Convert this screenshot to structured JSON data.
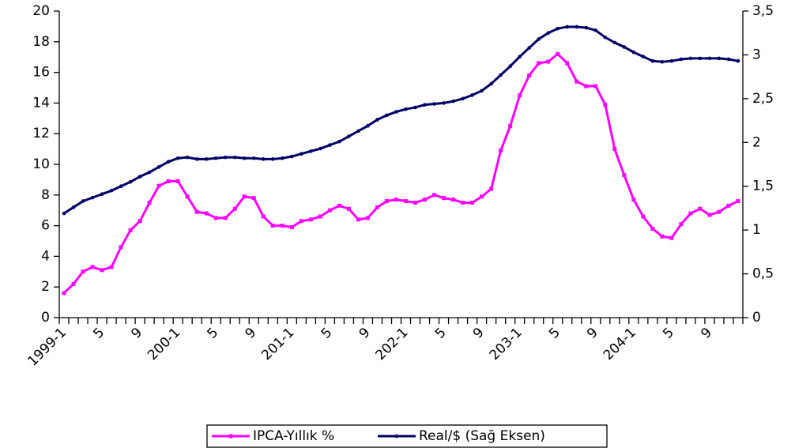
{
  "chart_data": {
    "type": "line",
    "categories": [
      "1999-1",
      null,
      null,
      null,
      "5",
      null,
      null,
      null,
      "9",
      null,
      null,
      null,
      "200-1",
      null,
      null,
      null,
      "5",
      null,
      null,
      null,
      "9",
      null,
      null,
      null,
      "201-1",
      null,
      null,
      null,
      "5",
      null,
      null,
      null,
      "9",
      null,
      null,
      null,
      "202-1",
      null,
      null,
      null,
      "5",
      null,
      null,
      null,
      "9",
      null,
      null,
      null,
      "203-1",
      null,
      null,
      null,
      "5",
      null,
      null,
      null,
      "9",
      null,
      null,
      null,
      "204-1",
      null,
      null,
      null,
      "5",
      null,
      null,
      null,
      "9",
      null,
      null,
      null
    ],
    "series": [
      {
        "name": "IPCA-Yıllık %",
        "color": "#ff00ff",
        "values": [
          1.6,
          2.2,
          3.0,
          3.3,
          3.1,
          3.3,
          4.6,
          5.7,
          6.3,
          7.5,
          8.6,
          8.9,
          8.9,
          7.9,
          6.9,
          6.8,
          6.5,
          6.5,
          7.1,
          7.9,
          7.8,
          6.6,
          6.0,
          6.0,
          5.9,
          6.3,
          6.4,
          6.6,
          7.0,
          7.3,
          7.1,
          6.4,
          6.5,
          7.2,
          7.6,
          7.7,
          7.6,
          7.5,
          7.7,
          8.0,
          7.8,
          7.7,
          7.5,
          7.5,
          7.9,
          8.4,
          10.9,
          12.5,
          14.5,
          15.8,
          16.6,
          16.7,
          17.2,
          16.6,
          15.4,
          15.1,
          15.1,
          13.9,
          11.0,
          9.3,
          7.7,
          6.6,
          5.8,
          5.3,
          5.2,
          6.1,
          6.8,
          7.1,
          6.7,
          6.9,
          7.3,
          7.6
        ]
      },
      {
        "name": "Real/$ (Sağ Eksen)",
        "color": "#000066",
        "axis": "y2",
        "values": [
          1.19,
          1.26,
          1.33,
          1.37,
          1.41,
          1.45,
          1.5,
          1.55,
          1.61,
          1.66,
          1.72,
          1.78,
          1.82,
          1.83,
          1.81,
          1.81,
          1.82,
          1.83,
          1.83,
          1.82,
          1.82,
          1.81,
          1.81,
          1.82,
          1.84,
          1.87,
          1.9,
          1.93,
          1.97,
          2.01,
          2.07,
          2.13,
          2.19,
          2.26,
          2.31,
          2.35,
          2.38,
          2.4,
          2.43,
          2.44,
          2.45,
          2.47,
          2.5,
          2.54,
          2.59,
          2.67,
          2.77,
          2.87,
          2.98,
          3.08,
          3.18,
          3.25,
          3.3,
          3.32,
          3.32,
          3.31,
          3.28,
          3.2,
          3.14,
          3.09,
          3.03,
          2.98,
          2.93,
          2.92,
          2.93,
          2.95,
          2.96,
          2.96,
          2.96,
          2.96,
          2.95,
          2.93
        ]
      }
    ],
    "ylim": [
      0,
      20
    ],
    "yticks": [
      0,
      2,
      4,
      6,
      8,
      10,
      12,
      14,
      16,
      18,
      20
    ],
    "y2lim": [
      0,
      3.5
    ],
    "y2ticks": [
      0,
      {
        "value": 0.5,
        "label": "0,5"
      },
      1,
      {
        "value": 1.5,
        "label": "1,5"
      },
      2,
      {
        "value": 2.5,
        "label": "2,5"
      },
      3,
      {
        "value": 3.5,
        "label": "3,5"
      }
    ],
    "legend": "bottom"
  }
}
